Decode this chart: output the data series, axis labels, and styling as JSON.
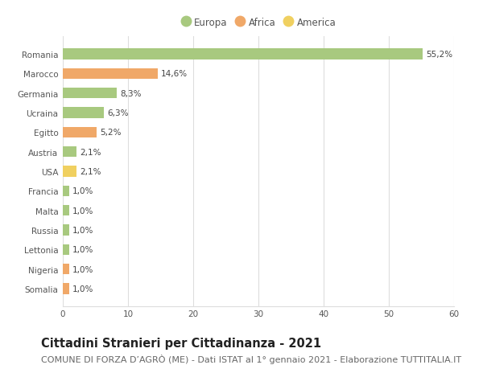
{
  "categories": [
    "Romania",
    "Marocco",
    "Germania",
    "Ucraina",
    "Egitto",
    "Austria",
    "USA",
    "Francia",
    "Malta",
    "Russia",
    "Lettonia",
    "Nigeria",
    "Somalia"
  ],
  "values": [
    55.2,
    14.6,
    8.3,
    6.3,
    5.2,
    2.1,
    2.1,
    1.0,
    1.0,
    1.0,
    1.0,
    1.0,
    1.0
  ],
  "labels": [
    "55,2%",
    "14,6%",
    "8,3%",
    "6,3%",
    "5,2%",
    "2,1%",
    "2,1%",
    "1,0%",
    "1,0%",
    "1,0%",
    "1,0%",
    "1,0%",
    "1,0%"
  ],
  "continents": [
    "Europa",
    "Africa",
    "Europa",
    "Europa",
    "Africa",
    "Europa",
    "America",
    "Europa",
    "Europa",
    "Europa",
    "Europa",
    "Africa",
    "Africa"
  ],
  "colors": {
    "Europa": "#a8c97f",
    "Africa": "#f0a868",
    "America": "#f0d060"
  },
  "legend_order": [
    "Europa",
    "Africa",
    "America"
  ],
  "xlim": [
    0,
    60
  ],
  "xticks": [
    0,
    10,
    20,
    30,
    40,
    50,
    60
  ],
  "title": "Cittadini Stranieri per Cittadinanza - 2021",
  "subtitle": "COMUNE DI FORZA D’AGRÒ (ME) - Dati ISTAT al 1° gennaio 2021 - Elaborazione TUTTITALIA.IT",
  "bg_color": "#ffffff",
  "grid_color": "#dddddd",
  "bar_height": 0.55,
  "title_fontsize": 10.5,
  "subtitle_fontsize": 8,
  "label_fontsize": 7.5,
  "tick_fontsize": 7.5,
  "legend_fontsize": 8.5
}
